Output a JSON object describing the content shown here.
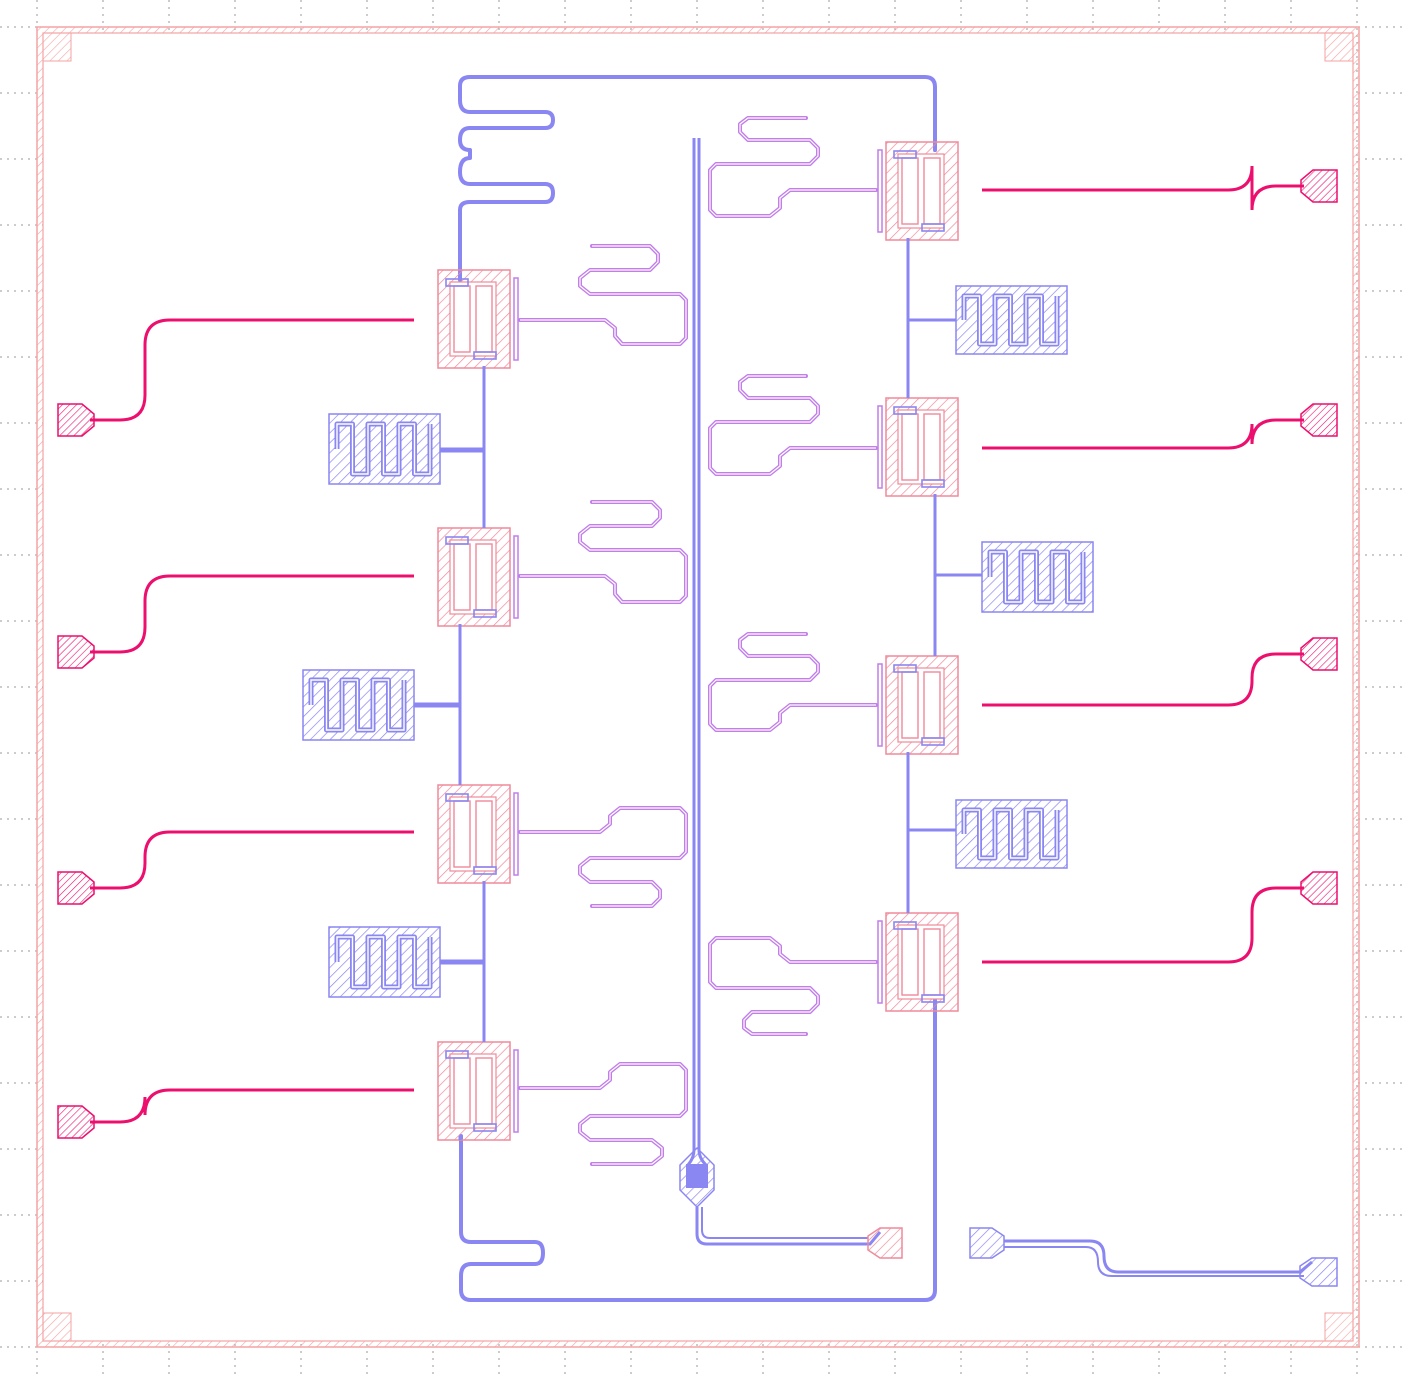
{
  "layout_view": {
    "layers": [
      {
        "name": "chip-boundary",
        "color": "#f4a3a3"
      },
      {
        "name": "qubit-pads",
        "color": "#f08a9a"
      },
      {
        "name": "drive-lines",
        "color": "#ec0f6e"
      },
      {
        "name": "resonators",
        "color": "#c27ee9"
      },
      {
        "name": "bus-and-couplers",
        "color": "#8a86f2"
      }
    ],
    "grid": true,
    "left_qubit_count": 4,
    "right_qubit_count": 4,
    "launch_pad_count": 10
  }
}
